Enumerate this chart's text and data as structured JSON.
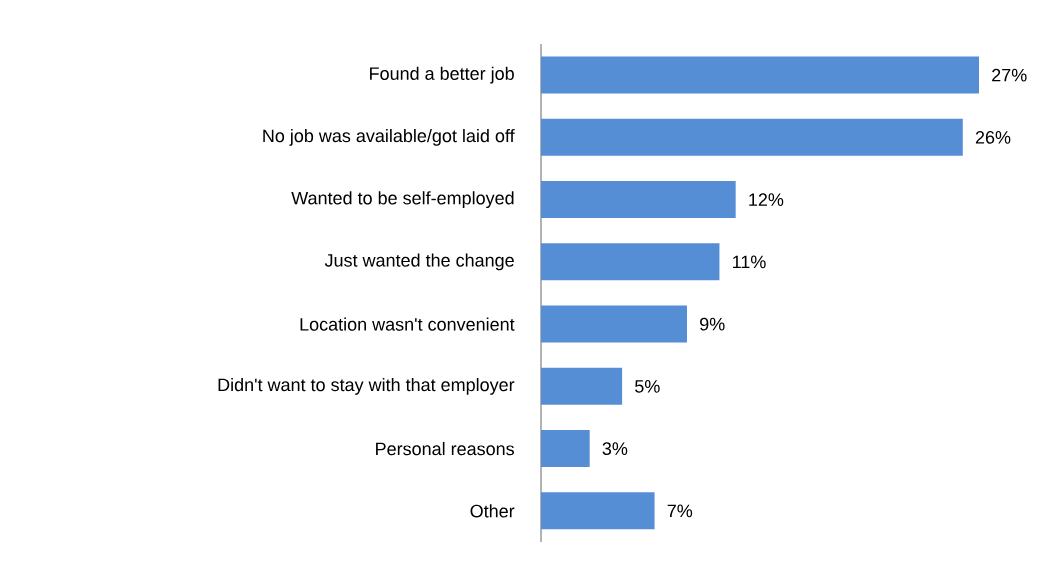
{
  "chart_data": {
    "type": "bar",
    "orientation": "horizontal",
    "categories": [
      "Found a better job",
      "No job was available/got laid off",
      "Wanted to be self-employed",
      "Just wanted the change",
      "Location wasn't convenient",
      "Didn't want to stay with that employer",
      "Personal reasons",
      "Other"
    ],
    "values": [
      27,
      26,
      12,
      11,
      9,
      5,
      3,
      7
    ],
    "value_labels": [
      "27%",
      "26%",
      "12%",
      "11%",
      "9%",
      "5%",
      "3%",
      "7%"
    ],
    "color": "#558ed5"
  }
}
